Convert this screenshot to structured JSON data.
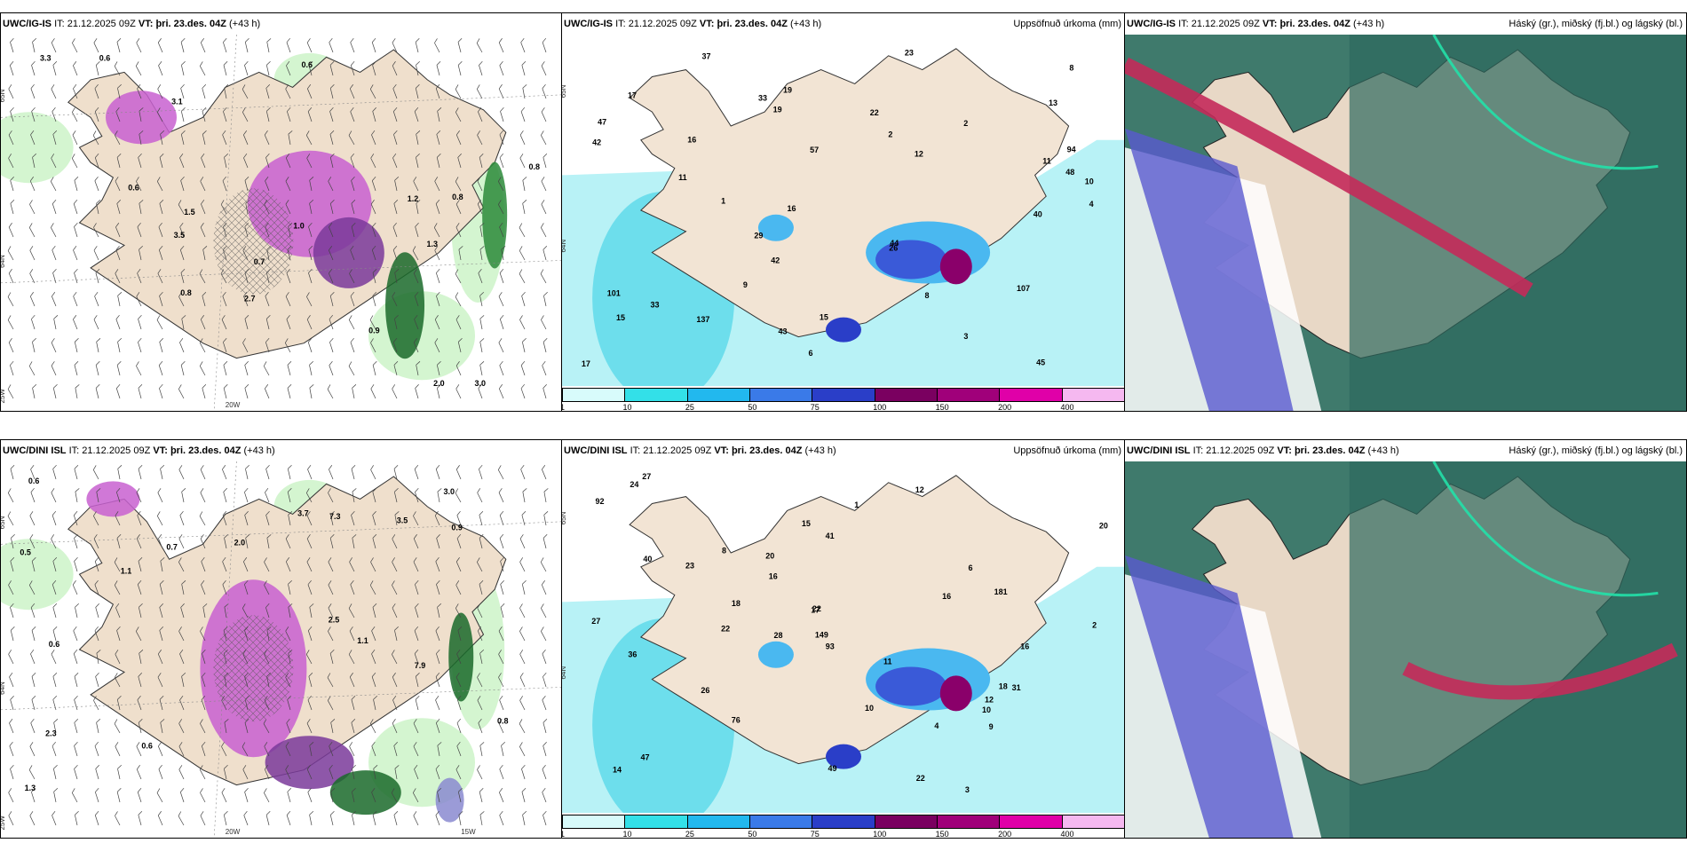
{
  "panels": [
    {
      "model": "UWC/IG-IS",
      "it_label": "IT:",
      "it_value": "21.12.2025 09Z",
      "vt_label": "VT:",
      "vt_value": "þri. 23.des. 04Z",
      "lead": "(+43 h)",
      "right_title": "",
      "kind": "wind",
      "labels": [
        "0.7",
        "0.6",
        "0.6",
        "1.3",
        "3.0",
        "3.1",
        "2.7",
        "3.5",
        "0.8",
        "1.2",
        "0.8",
        "0.6",
        "3.3",
        "2.0",
        "1.5",
        "0.9",
        "1.0",
        "0.8"
      ],
      "axis": [
        "65N",
        "64N",
        "25W",
        "20W"
      ]
    },
    {
      "model": "UWC/IG-IS",
      "it_label": "IT:",
      "it_value": "21.12.2025 09Z",
      "vt_label": "VT:",
      "vt_value": "þri. 23.des. 04Z",
      "lead": "(+43 h)",
      "right_title": "Uppsöfnuð úrkoma (mm)",
      "kind": "precip",
      "labels": [
        "4",
        "22",
        "15",
        "8",
        "9",
        "11",
        "13",
        "16",
        "15",
        "17",
        "33",
        "42",
        "29",
        "45",
        "17",
        "16",
        "48",
        "44",
        "10",
        "12",
        "11",
        "94",
        "33",
        "137",
        "57",
        "19",
        "42",
        "107",
        "101",
        "8",
        "6",
        "2",
        "1",
        "2",
        "3",
        "43",
        "23",
        "19",
        "26",
        "40",
        "47",
        "37"
      ],
      "axis": [
        "65N",
        "64N"
      ]
    },
    {
      "model": "UWC/IG-IS",
      "it_label": "IT:",
      "it_value": "21.12.2025 09Z",
      "vt_label": "VT:",
      "vt_value": "þri. 23.des. 04Z",
      "lead": "(+43 h)",
      "right_title": "Háský (gr.), miðský (fj.bl.) og lágský (bl.)",
      "kind": "cloud",
      "labels": [],
      "axis": []
    },
    {
      "model": "UWC/DINI ISL",
      "it_label": "IT:",
      "it_value": "21.12.2025 09Z",
      "vt_label": "VT:",
      "vt_value": "þri. 23.des. 04Z",
      "lead": "(+43 h)",
      "right_title": "",
      "kind": "wind",
      "labels": [
        "0.5",
        "0.6",
        "0.6",
        "2.0",
        "1.1",
        "2.3",
        "3.0",
        "2.5",
        "7.3",
        "3.7",
        "7.9",
        "1.3",
        "0.8",
        "0.6",
        "1.1",
        "0.7",
        "3.5",
        "0.9"
      ],
      "axis": [
        "65N",
        "64N",
        "25W",
        "20W",
        "15W"
      ]
    },
    {
      "model": "UWC/DINI ISL",
      "it_label": "IT:",
      "it_value": "21.12.2025 09Z",
      "vt_label": "VT:",
      "vt_value": "þri. 23.des. 04Z",
      "lead": "(+43 h)",
      "right_title": "Uppsöfnuð úrkoma (mm)",
      "kind": "precip",
      "labels": [
        "1",
        "11",
        "16",
        "18",
        "12",
        "22",
        "22",
        "16",
        "20",
        "18",
        "14",
        "16",
        "23",
        "24",
        "15",
        "31",
        "27",
        "22",
        "20",
        "41",
        "26",
        "92",
        "49",
        "40",
        "76",
        "93",
        "149",
        "36",
        "181",
        "10",
        "9",
        "10",
        "6",
        "4",
        "3",
        "28",
        "47",
        "27",
        "12",
        "17",
        "2",
        "8"
      ],
      "axis": [
        "65N",
        "64N"
      ]
    },
    {
      "model": "UWC/DINI ISL",
      "it_label": "IT:",
      "it_value": "21.12.2025 09Z",
      "vt_label": "VT:",
      "vt_value": "þri. 23.des. 04Z",
      "lead": "(+43 h)",
      "right_title": "Háský (gr.), miðský (fj.bl.) og lágský (bl.)",
      "kind": "cloud",
      "labels": [],
      "axis": []
    }
  ],
  "colorbar": {
    "ticks": [
      "1",
      "10",
      "25",
      "50",
      "75",
      "100",
      "150",
      "200",
      "400"
    ],
    "colors": [
      "#d8fbfb",
      "#33e0e8",
      "#22b8ee",
      "#3a7ae8",
      "#2a3ec8",
      "#7a0060",
      "#a0007a",
      "#e000a8",
      "#f5b8f0"
    ]
  }
}
